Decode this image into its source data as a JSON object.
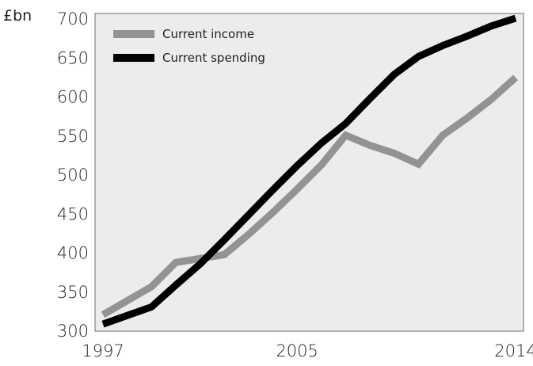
{
  "chart_data": {
    "type": "line",
    "title": "",
    "xlabel": "",
    "ylabel": "",
    "y_unit": "£bn",
    "xlim": [
      1997,
      2014
    ],
    "ylim": [
      300,
      700
    ],
    "x_ticks": [
      1997,
      2005,
      2014
    ],
    "x_tick_labels": [
      "1997",
      "2005",
      "2014"
    ],
    "y_ticks": [
      300,
      350,
      400,
      450,
      500,
      550,
      600,
      650,
      700
    ],
    "y_tick_labels": [
      "300",
      "350",
      "400",
      "450",
      "500",
      "550",
      "600",
      "650",
      "700"
    ],
    "grid": false,
    "plot_background": "#ececec",
    "legend_position": "top-left",
    "x": [
      1997,
      1998,
      1999,
      2000,
      2001,
      2002,
      2003,
      2004,
      2005,
      2006,
      2007,
      2008,
      2009,
      2010,
      2011,
      2012,
      2013,
      2014
    ],
    "series": [
      {
        "name": "Current income",
        "color": "#939393",
        "values": [
          320,
          338,
          356,
          387,
          392,
          397,
          423,
          451,
          481,
          512,
          550,
          537,
          527,
          513,
          550,
          572,
          596,
          624
        ]
      },
      {
        "name": "Current spending",
        "color": "#000000",
        "values": [
          308,
          319,
          330,
          358,
          385,
          416,
          448,
          480,
          511,
          540,
          565,
          597,
          628,
          651,
          665,
          677,
          690,
          700
        ]
      }
    ]
  }
}
